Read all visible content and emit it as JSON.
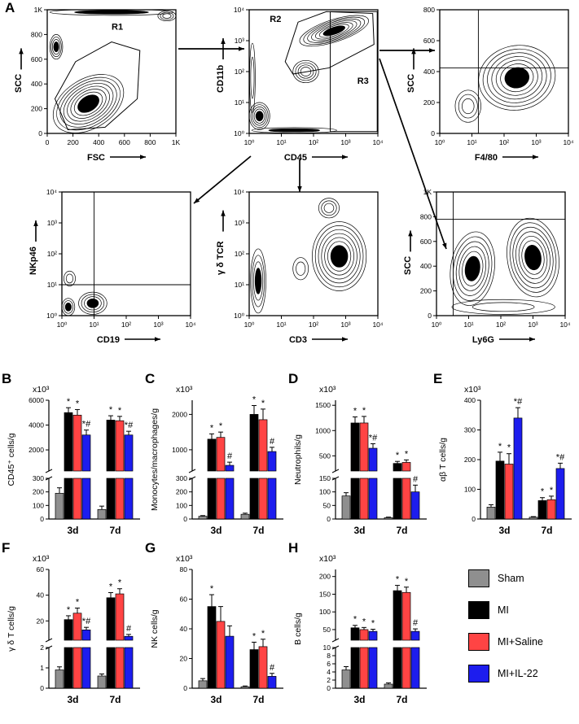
{
  "figure": {
    "panel_labels": [
      "A",
      "B",
      "C",
      "D",
      "E",
      "F",
      "G",
      "H"
    ]
  },
  "legend": {
    "items": [
      {
        "label": "Sham",
        "color": "#8f8f8f"
      },
      {
        "label": "MI",
        "color": "#000000"
      },
      {
        "label": "MI+Saline",
        "color": "#ff4444"
      },
      {
        "label": "MI+IL-22",
        "color": "#1d1dee"
      }
    ]
  },
  "flow": {
    "plots": [
      {
        "name": "scc-vs-fsc",
        "xlabel": "FSC",
        "ylabel": "SCC",
        "xticks": [
          "0",
          "200",
          "400",
          "600",
          "800",
          "1K"
        ],
        "yticks": [
          "1K",
          "800",
          "600",
          "400",
          "200",
          "0"
        ],
        "gates": [
          "R1"
        ]
      },
      {
        "name": "cd11b-vs-cd45",
        "xlabel": "CD45",
        "ylabel": "CD11b",
        "xticks": [
          "10⁰",
          "10¹",
          "10²",
          "10³",
          "10⁴"
        ],
        "yticks": [
          "10⁴",
          "10³",
          "10²",
          "10¹",
          "10⁰"
        ],
        "gates": [
          "R2",
          "R3"
        ]
      },
      {
        "name": "scc-vs-f480",
        "xlabel": "F4/80",
        "ylabel": "SCC",
        "xticks": [
          "10⁰",
          "10¹",
          "10²",
          "10³",
          "10⁴"
        ],
        "yticks": [
          "800",
          "600",
          "400",
          "200",
          "0"
        ],
        "gates": []
      },
      {
        "name": "nkp46-vs-cd19",
        "xlabel": "CD19",
        "ylabel": "NKp46",
        "xticks": [
          "10⁰",
          "10¹",
          "10²",
          "10³",
          "10⁴"
        ],
        "yticks": [
          "10⁴",
          "10³",
          "10²",
          "10¹",
          "10⁰"
        ],
        "gates": []
      },
      {
        "name": "gdtcr-vs-cd3",
        "xlabel": "CD3",
        "ylabel": "γ δ TCR",
        "xticks": [
          "10⁰",
          "10¹",
          "10²",
          "10³",
          "10⁴"
        ],
        "yticks": [
          "10⁴",
          "10³",
          "10²",
          "10¹",
          "10⁰"
        ],
        "gates": []
      },
      {
        "name": "scc-vs-ly6g",
        "xlabel": "Ly6G",
        "ylabel": "SCC",
        "xticks": [
          "10⁰",
          "10¹",
          "10²",
          "10³",
          "10⁴"
        ],
        "yticks": [
          "1K",
          "800",
          "600",
          "400",
          "200",
          "0"
        ],
        "gates": []
      }
    ]
  },
  "chart_data": [
    {
      "panel": "B",
      "type": "bar",
      "ylabel": "CD45⁺ cells/g",
      "scale": "x10³",
      "categories": [
        "3d",
        "7d"
      ],
      "axis": {
        "segments": [
          {
            "min": 300,
            "max": 6000,
            "ticks": [
              2000,
              4000,
              6000
            ]
          },
          {
            "min": 0,
            "max": 300,
            "ticks": [
              0,
              100,
              200,
              300
            ]
          }
        ]
      },
      "series": [
        {
          "name": "Sham",
          "values": [
            190,
            70
          ],
          "errors": [
            40,
            25
          ],
          "sig": [
            "",
            ""
          ]
        },
        {
          "name": "MI",
          "values": [
            5000,
            4400
          ],
          "errors": [
            400,
            350
          ],
          "sig": [
            "*",
            "*"
          ]
        },
        {
          "name": "MI+Saline",
          "values": [
            4800,
            4350
          ],
          "errors": [
            450,
            350
          ],
          "sig": [
            "*",
            "*"
          ]
        },
        {
          "name": "MI+IL-22",
          "values": [
            3200,
            3200
          ],
          "errors": [
            400,
            300
          ],
          "sig": [
            "*#",
            "*#"
          ]
        }
      ]
    },
    {
      "panel": "C",
      "type": "bar",
      "ylabel": "Monocytes/macrophages/g",
      "scale": "x10³",
      "categories": [
        "3d",
        "7d"
      ],
      "axis": {
        "segments": [
          {
            "min": 400,
            "max": 2400,
            "ticks": [
              1000,
              2000
            ]
          },
          {
            "min": 0,
            "max": 300,
            "ticks": [
              0,
              100,
              200,
              300
            ]
          }
        ]
      },
      "series": [
        {
          "name": "Sham",
          "values": [
            20,
            35
          ],
          "errors": [
            5,
            8
          ],
          "sig": [
            "",
            ""
          ]
        },
        {
          "name": "MI",
          "values": [
            1300,
            2000
          ],
          "errors": [
            150,
            250
          ],
          "sig": [
            "*",
            "*"
          ]
        },
        {
          "name": "MI+Saline",
          "values": [
            1350,
            1850
          ],
          "errors": [
            150,
            300
          ],
          "sig": [
            "*",
            "*"
          ]
        },
        {
          "name": "MI+IL-22",
          "values": [
            560,
            950
          ],
          "errors": [
            90,
            120
          ],
          "sig": [
            "#",
            "#"
          ]
        }
      ]
    },
    {
      "panel": "D",
      "type": "bar",
      "ylabel": "Neutrophils/g",
      "scale": "x10³",
      "categories": [
        "3d",
        "7d"
      ],
      "axis": {
        "segments": [
          {
            "min": 200,
            "max": 1600,
            "ticks": [
              500,
              1000,
              1500
            ]
          },
          {
            "min": 0,
            "max": 150,
            "ticks": [
              0,
              50,
              100,
              150
            ]
          }
        ]
      },
      "series": [
        {
          "name": "Sham",
          "values": [
            85,
            5
          ],
          "errors": [
            12,
            2
          ],
          "sig": [
            "",
            ""
          ]
        },
        {
          "name": "MI",
          "values": [
            1150,
            350
          ],
          "errors": [
            120,
            40
          ],
          "sig": [
            "*",
            "*"
          ]
        },
        {
          "name": "MI+Saline",
          "values": [
            1150,
            370
          ],
          "errors": [
            130,
            50
          ],
          "sig": [
            "*",
            "*"
          ]
        },
        {
          "name": "MI+IL-22",
          "values": [
            650,
            100
          ],
          "errors": [
            90,
            25
          ],
          "sig": [
            "*#",
            "#"
          ]
        }
      ]
    },
    {
      "panel": "E",
      "type": "bar",
      "ylabel": "αβ T cells/g",
      "scale": "x10³",
      "categories": [
        "3d",
        "7d"
      ],
      "axis": {
        "segments": [
          {
            "min": 0,
            "max": 400,
            "ticks": [
              0,
              100,
              200,
              300,
              400
            ]
          }
        ]
      },
      "series": [
        {
          "name": "Sham",
          "values": [
            40,
            6
          ],
          "errors": [
            8,
            2
          ],
          "sig": [
            "",
            ""
          ]
        },
        {
          "name": "MI",
          "values": [
            195,
            62
          ],
          "errors": [
            30,
            10
          ],
          "sig": [
            "*",
            "*"
          ]
        },
        {
          "name": "MI+Saline",
          "values": [
            185,
            65
          ],
          "errors": [
            35,
            12
          ],
          "sig": [
            "*",
            "*"
          ]
        },
        {
          "name": "MI+IL-22",
          "values": [
            340,
            170
          ],
          "errors": [
            35,
            18
          ],
          "sig": [
            "*#",
            "*#"
          ]
        }
      ]
    },
    {
      "panel": "F",
      "type": "bar",
      "ylabel": "γ δ T cells/g",
      "scale": "x10³",
      "categories": [
        "3d",
        "7d"
      ],
      "axis": {
        "segments": [
          {
            "min": 5,
            "max": 60,
            "ticks": [
              20,
              40,
              60
            ]
          },
          {
            "min": 0,
            "max": 2,
            "ticks": [
              0,
              1,
              2
            ]
          }
        ]
      },
      "series": [
        {
          "name": "Sham",
          "values": [
            0.9,
            0.6
          ],
          "errors": [
            0.15,
            0.1
          ],
          "sig": [
            "",
            ""
          ]
        },
        {
          "name": "MI",
          "values": [
            21,
            38
          ],
          "errors": [
            3,
            4
          ],
          "sig": [
            "*",
            "*"
          ]
        },
        {
          "name": "MI+Saline",
          "values": [
            26,
            41
          ],
          "errors": [
            4,
            4
          ],
          "sig": [
            "*",
            "*"
          ]
        },
        {
          "name": "MI+IL-22",
          "values": [
            13,
            8
          ],
          "errors": [
            2,
            1.5
          ],
          "sig": [
            "*#",
            "#"
          ]
        }
      ]
    },
    {
      "panel": "G",
      "type": "bar",
      "ylabel": "NK cells/g",
      "scale": "x10³",
      "categories": [
        "3d",
        "7d"
      ],
      "axis": {
        "segments": [
          {
            "min": 0,
            "max": 80,
            "ticks": [
              0,
              20,
              40,
              60,
              80
            ]
          }
        ]
      },
      "series": [
        {
          "name": "Sham",
          "values": [
            5,
            1
          ],
          "errors": [
            1.5,
            0.5
          ],
          "sig": [
            "",
            ""
          ]
        },
        {
          "name": "MI",
          "values": [
            55,
            26
          ],
          "errors": [
            8,
            5
          ],
          "sig": [
            "*",
            "*"
          ]
        },
        {
          "name": "MI+Saline",
          "values": [
            45,
            28
          ],
          "errors": [
            10,
            5
          ],
          "sig": [
            "",
            "*"
          ]
        },
        {
          "name": "MI+IL-22",
          "values": [
            35,
            8
          ],
          "errors": [
            7,
            2
          ],
          "sig": [
            "",
            "#"
          ]
        }
      ]
    },
    {
      "panel": "H",
      "type": "bar",
      "ylabel": "B cells/g",
      "scale": "x10³",
      "categories": [
        "3d",
        "7d"
      ],
      "axis": {
        "segments": [
          {
            "min": 20,
            "max": 220,
            "ticks": [
              50,
              100,
              150,
              200
            ]
          },
          {
            "min": 0,
            "max": 10,
            "ticks": [
              0,
              2,
              4,
              6,
              8,
              10
            ]
          }
        ]
      },
      "series": [
        {
          "name": "Sham",
          "values": [
            4.5,
            1
          ],
          "errors": [
            0.8,
            0.3
          ],
          "sig": [
            "",
            ""
          ]
        },
        {
          "name": "MI",
          "values": [
            55,
            160
          ],
          "errors": [
            7,
            15
          ],
          "sig": [
            "*",
            "*"
          ]
        },
        {
          "name": "MI+Saline",
          "values": [
            50,
            155
          ],
          "errors": [
            6,
            15
          ],
          "sig": [
            "*",
            "*"
          ]
        },
        {
          "name": "MI+IL-22",
          "values": [
            45,
            45
          ],
          "errors": [
            6,
            7
          ],
          "sig": [
            "*",
            "#"
          ]
        }
      ]
    }
  ]
}
